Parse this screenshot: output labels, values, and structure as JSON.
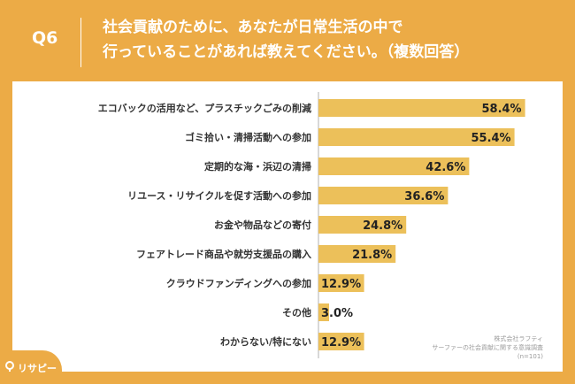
{
  "header": {
    "qnum": "Q6",
    "question_line1": "社会貢献のために、あなたが日常生活の中で",
    "question_line2": "行っていることがあれば教えてください。（複数回答）"
  },
  "footnote": {
    "company": "株式会社ラフティ",
    "survey": "サーファーの社会貢献に関する意識調査",
    "n": "(n=101)"
  },
  "logo": {
    "text": "リサピー"
  },
  "colors": {
    "background": "#ecab46",
    "bar": "#ecc05a",
    "card": "#ffffff",
    "axis": "#b0b0b0"
  },
  "chart_data": {
    "type": "bar",
    "orientation": "horizontal",
    "title": "",
    "xlabel": "",
    "ylabel": "",
    "xlim": [
      0,
      70
    ],
    "categories": [
      "エコバックの活用など、プラスチックごみの削減",
      "ゴミ拾い・清掃活動への参加",
      "定期的な海・浜辺の清掃",
      "リユース・リサイクルを促す活動への参加",
      "お金や物品などの寄付",
      "フェアトレード商品や就労支援品の購入",
      "クラウドファンディングへの参加",
      "その他",
      "わからない/特にない"
    ],
    "values": [
      58.4,
      55.4,
      42.6,
      36.6,
      24.8,
      21.8,
      12.9,
      3.0,
      12.9
    ],
    "value_labels": [
      "58.4%",
      "55.4%",
      "42.6%",
      "36.6%",
      "24.8%",
      "21.8%",
      "12.9%",
      "3.0%",
      "12.9%"
    ],
    "grid": false,
    "legend": "none"
  }
}
